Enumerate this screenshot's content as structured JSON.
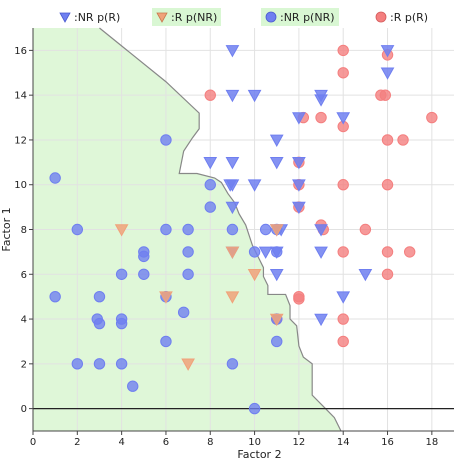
{
  "chart_data": {
    "type": "scatter",
    "title": "",
    "xlabel": "Factor 2",
    "ylabel": "Factor 1",
    "xlim": [
      0,
      19
    ],
    "ylim": [
      -1,
      17
    ],
    "xticks": [
      0,
      2,
      4,
      6,
      8,
      10,
      12,
      14,
      16,
      18
    ],
    "yticks": [
      0,
      2,
      4,
      6,
      8,
      10,
      12,
      14,
      16
    ],
    "grid": true,
    "legend_position": "top",
    "region": {
      "label": "NR decision region",
      "color": "#dff7d8",
      "boundary": [
        [
          3,
          17
        ],
        [
          6,
          14.6
        ],
        [
          7.5,
          13.2
        ],
        [
          7.5,
          12.5
        ],
        [
          7.2,
          12.1
        ],
        [
          6.8,
          11.5
        ],
        [
          6.6,
          10.5
        ],
        [
          7.4,
          10.5
        ],
        [
          8.2,
          10.3
        ],
        [
          8.5,
          10.1
        ],
        [
          8.8,
          9.6
        ],
        [
          9.1,
          9.2
        ],
        [
          9.3,
          8.7
        ],
        [
          9.6,
          8.2
        ],
        [
          9.9,
          7.3
        ],
        [
          10.2,
          6.7
        ],
        [
          10.4,
          6.3
        ],
        [
          10.4,
          5.9
        ],
        [
          10.6,
          5.5
        ],
        [
          10.6,
          5.1
        ],
        [
          11.4,
          5.1
        ],
        [
          11.6,
          4.6
        ],
        [
          11.6,
          4.0
        ],
        [
          11.9,
          3.7
        ],
        [
          12.0,
          2.8
        ],
        [
          12.2,
          2.3
        ],
        [
          12.6,
          2.0
        ],
        [
          12.6,
          0.6
        ],
        [
          13.3,
          -0.1
        ],
        [
          13.6,
          -0.4
        ],
        [
          13.9,
          -1
        ]
      ],
      "boundary_color": "#888888"
    },
    "series": [
      {
        "name": ":NR p(R)",
        "marker": "triangle-down",
        "color": "#6f7ff0",
        "points": [
          [
            9,
            16
          ],
          [
            16,
            16
          ],
          [
            16,
            15
          ],
          [
            9,
            14
          ],
          [
            10,
            14
          ],
          [
            13,
            14
          ],
          [
            13,
            13.8
          ],
          [
            12,
            13
          ],
          [
            14,
            13
          ],
          [
            11,
            12
          ],
          [
            8,
            11
          ],
          [
            9,
            11
          ],
          [
            11,
            11
          ],
          [
            12,
            11
          ],
          [
            9,
            10
          ],
          [
            8.9,
            10
          ],
          [
            10,
            10
          ],
          [
            12,
            10
          ],
          [
            12,
            9
          ],
          [
            9,
            9
          ],
          [
            11,
            8
          ],
          [
            11.2,
            8
          ],
          [
            13,
            8
          ],
          [
            9,
            7
          ],
          [
            11,
            7
          ],
          [
            10.5,
            7
          ],
          [
            13,
            7
          ],
          [
            11,
            6
          ],
          [
            15,
            6
          ],
          [
            14,
            5
          ],
          [
            13,
            4
          ]
        ]
      },
      {
        "name": ":R p(NR)",
        "marker": "triangle-down",
        "color": "#f0a27a",
        "points": [
          [
            4,
            8
          ],
          [
            11,
            8
          ],
          [
            9,
            7
          ],
          [
            10,
            6
          ],
          [
            6,
            5
          ],
          [
            9,
            5
          ],
          [
            11,
            4
          ],
          [
            7,
            2
          ]
        ]
      },
      {
        "name": ":NR p(NR)",
        "marker": "circle",
        "color": "#6f7ff0",
        "points": [
          [
            1,
            10.3
          ],
          [
            6,
            12
          ],
          [
            8,
            10
          ],
          [
            8,
            9
          ],
          [
            10.5,
            8
          ],
          [
            11,
            8
          ],
          [
            2,
            8
          ],
          [
            6,
            8
          ],
          [
            7,
            8
          ],
          [
            9,
            8
          ],
          [
            5,
            7
          ],
          [
            5,
            6.8
          ],
          [
            7,
            7
          ],
          [
            10,
            7
          ],
          [
            11,
            7
          ],
          [
            4,
            6
          ],
          [
            5,
            6
          ],
          [
            7,
            6
          ],
          [
            1,
            5
          ],
          [
            3,
            5
          ],
          [
            6,
            5
          ],
          [
            2.9,
            4
          ],
          [
            3,
            3.8
          ],
          [
            4,
            4
          ],
          [
            4,
            3.8
          ],
          [
            6.8,
            4.3
          ],
          [
            11,
            4
          ],
          [
            6,
            3
          ],
          [
            11,
            3
          ],
          [
            2,
            2
          ],
          [
            3,
            2
          ],
          [
            4,
            2
          ],
          [
            9,
            2
          ],
          [
            4.5,
            1
          ],
          [
            10,
            0
          ]
        ]
      },
      {
        "name": ":R p(R)",
        "marker": "circle",
        "color": "#f47f7f",
        "points": [
          [
            14,
            16
          ],
          [
            16,
            15.8
          ],
          [
            14,
            15
          ],
          [
            8,
            14
          ],
          [
            15.7,
            14
          ],
          [
            15.9,
            14
          ],
          [
            12.2,
            13
          ],
          [
            13,
            13
          ],
          [
            18,
            13
          ],
          [
            14,
            12.6
          ],
          [
            16,
            12
          ],
          [
            16.7,
            12
          ],
          [
            12,
            11
          ],
          [
            12,
            10
          ],
          [
            14,
            10
          ],
          [
            16,
            10
          ],
          [
            12,
            9
          ],
          [
            13.1,
            8
          ],
          [
            13,
            8.2
          ],
          [
            15,
            8
          ],
          [
            14,
            7
          ],
          [
            16,
            7
          ],
          [
            17,
            7
          ],
          [
            16,
            6
          ],
          [
            12,
            5
          ],
          [
            12,
            4.9
          ],
          [
            14,
            4
          ],
          [
            14,
            3
          ],
          [
            11,
            4
          ]
        ]
      }
    ]
  }
}
